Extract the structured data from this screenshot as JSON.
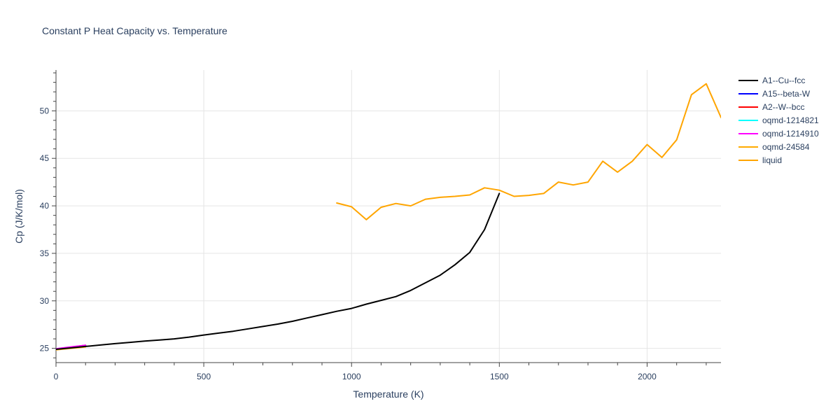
{
  "chart_data": {
    "type": "line",
    "title": "Constant P Heat Capacity vs. Temperature",
    "xlabel": "Temperature (K)",
    "ylabel": "Cp (J/K/mol)",
    "xlim": [
      0,
      2250
    ],
    "ylim": [
      23.5,
      54.3
    ],
    "xticks": [
      0,
      500,
      1000,
      1500,
      2000
    ],
    "yticks": [
      25,
      30,
      35,
      40,
      45,
      50
    ],
    "grid": true,
    "legend_position": "right",
    "series": [
      {
        "name": "A1--Cu--fcc",
        "color": "#000000",
        "x": [
          0,
          50,
          100,
          150,
          200,
          250,
          300,
          350,
          400,
          450,
          500,
          550,
          600,
          650,
          700,
          750,
          800,
          850,
          900,
          950,
          1000,
          1050,
          1100,
          1150,
          1200,
          1250,
          1300,
          1350,
          1400,
          1450,
          1500
        ],
        "y": [
          24.9,
          25.05,
          25.2,
          25.35,
          25.5,
          25.63,
          25.76,
          25.88,
          26.0,
          26.18,
          26.4,
          26.6,
          26.8,
          27.05,
          27.3,
          27.55,
          27.85,
          28.2,
          28.55,
          28.9,
          29.2,
          29.65,
          30.05,
          30.45,
          31.1,
          31.9,
          32.7,
          33.8,
          35.1,
          37.5,
          41.3
        ]
      },
      {
        "name": "A15--beta-W",
        "color": "#0000ff",
        "x": [
          0,
          50,
          100
        ],
        "y": [
          24.9,
          25.1,
          25.3
        ]
      },
      {
        "name": "A2--W--bcc",
        "color": "#ff0000",
        "x": [
          0,
          50,
          100
        ],
        "y": [
          24.9,
          25.12,
          25.32
        ]
      },
      {
        "name": "oqmd-1214821",
        "color": "#00ffff",
        "x": [
          0,
          50,
          100
        ],
        "y": [
          24.95,
          25.1,
          25.28
        ]
      },
      {
        "name": "oqmd-1214910",
        "color": "#ff00ff",
        "x": [
          0,
          50,
          100
        ],
        "y": [
          24.95,
          25.15,
          25.33
        ]
      },
      {
        "name": "oqmd-24584",
        "color": "#ffaa00",
        "x": [
          0,
          50,
          100
        ],
        "y": [
          24.85,
          25.0,
          25.15
        ]
      },
      {
        "name": "liquid",
        "color": "#ffa500",
        "x": [
          950,
          1000,
          1050,
          1100,
          1150,
          1200,
          1250,
          1300,
          1350,
          1400,
          1450,
          1500,
          1550,
          1600,
          1650,
          1700,
          1750,
          1800,
          1850,
          1900,
          1950,
          2000,
          2050,
          2100,
          2150,
          2200,
          2250
        ],
        "y": [
          40.3,
          39.9,
          38.55,
          39.85,
          40.25,
          40.0,
          40.7,
          40.9,
          41.0,
          41.15,
          41.9,
          41.65,
          41.0,
          41.1,
          41.3,
          42.5,
          42.2,
          42.5,
          44.7,
          43.55,
          44.7,
          46.45,
          45.1,
          46.95,
          51.7,
          52.85,
          49.3
        ]
      }
    ]
  }
}
